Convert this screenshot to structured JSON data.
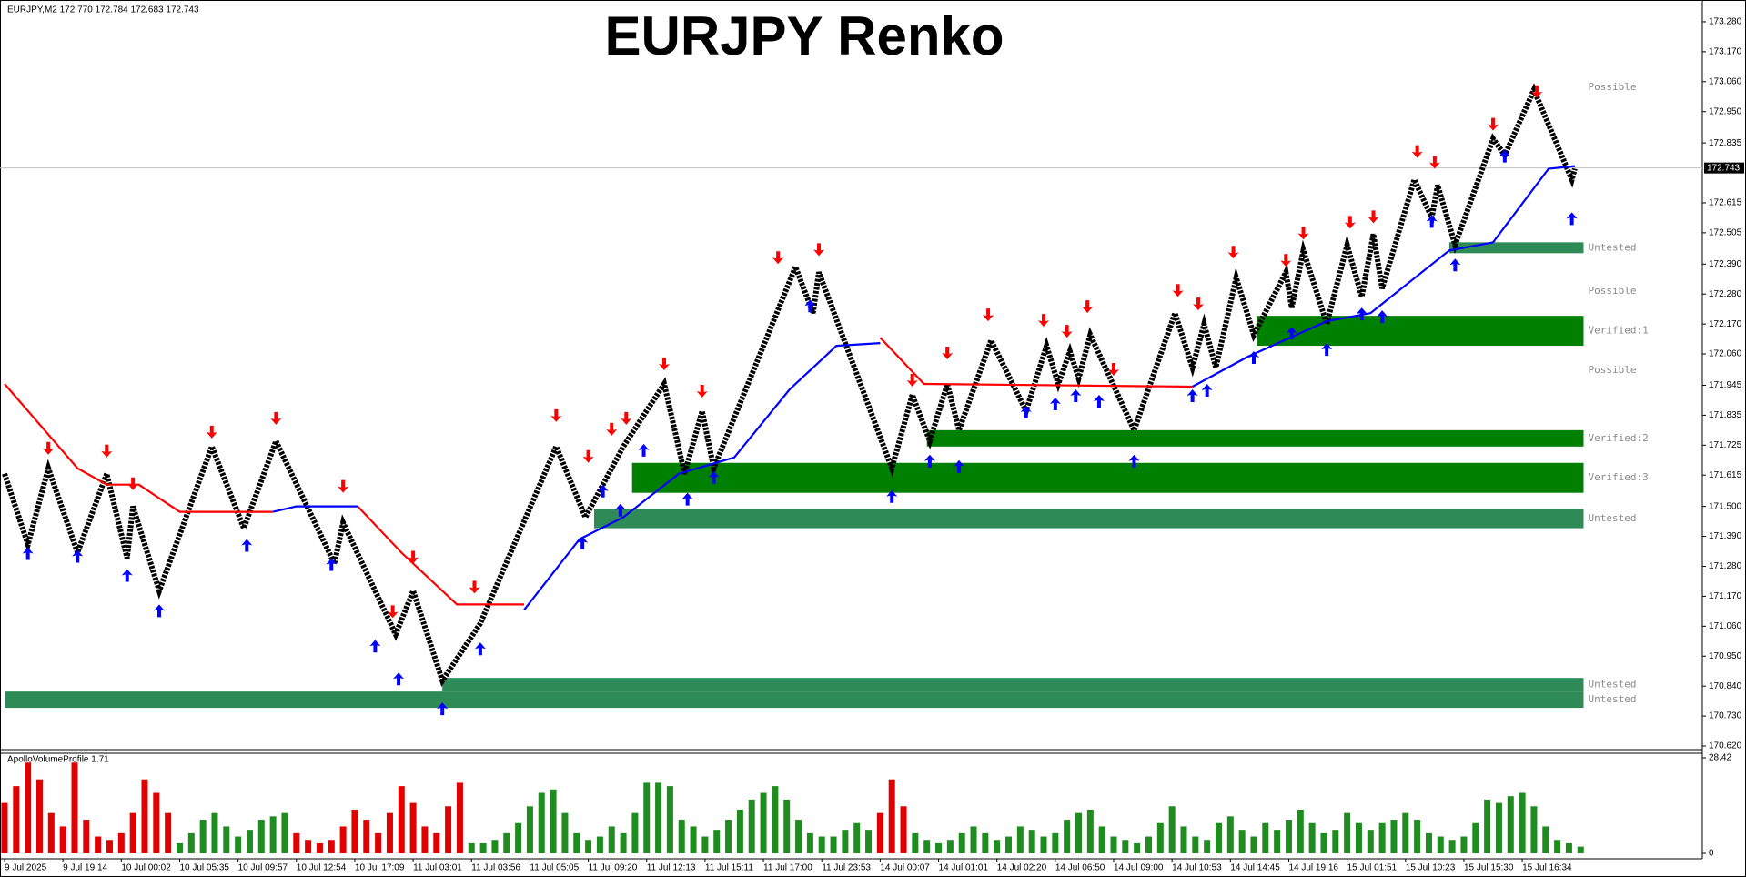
{
  "header": "EURJPY,M2  172.770 172.784 172.683 172.743",
  "chart_data": {
    "type": "renko",
    "title": "EURJPY Renko",
    "xlim": [
      0,
      582
    ],
    "xticks": [
      {
        "value": 0,
        "label": "9 Jul 2025"
      },
      {
        "value": 20,
        "label": "9 Jul 19:14"
      },
      {
        "value": 40,
        "label": "10 Jul 00:02"
      },
      {
        "value": 60,
        "label": "10 Jul 05:35"
      },
      {
        "value": 80,
        "label": "10 Jul 09:57"
      },
      {
        "value": 100,
        "label": "10 Jul 12:54"
      },
      {
        "value": 120,
        "label": "10 Jul 17:09"
      },
      {
        "value": 140,
        "label": "11 Jul 03:01"
      },
      {
        "value": 160,
        "label": "11 Jul 03:56"
      },
      {
        "value": 180,
        "label": "11 Jul 05:05"
      },
      {
        "value": 200,
        "label": "11 Jul 09:20"
      },
      {
        "value": 220,
        "label": "11 Jul 12:13"
      },
      {
        "value": 240,
        "label": "11 Jul 15:11"
      },
      {
        "value": 260,
        "label": "11 Jul 17:00"
      },
      {
        "value": 280,
        "label": "11 Jul 23:53"
      },
      {
        "value": 300,
        "label": "14 Jul 00:07"
      },
      {
        "value": 320,
        "label": "14 Jul 01:01"
      },
      {
        "value": 340,
        "label": "14 Jul 02:20"
      },
      {
        "value": 360,
        "label": "14 Jul 06:50"
      },
      {
        "value": 380,
        "label": "14 Jul 09:00"
      },
      {
        "value": 400,
        "label": "14 Jul 10:53"
      },
      {
        "value": 420,
        "label": "14 Jul 14:45"
      },
      {
        "value": 440,
        "label": "14 Jul 19:16"
      },
      {
        "value": 460,
        "label": "15 Jul 01:51"
      },
      {
        "value": 480,
        "label": "15 Jul 10:23"
      },
      {
        "value": 500,
        "label": "15 Jul 15:30"
      },
      {
        "value": 520,
        "label": "15 Jul 16:34"
      }
    ],
    "ylim": [
      170.61,
      173.36
    ],
    "yticks": [
      {
        "value": 173.28,
        "label": "173.280"
      },
      {
        "value": 173.17,
        "label": "173.170"
      },
      {
        "value": 173.06,
        "label": "173.060"
      },
      {
        "value": 172.95,
        "label": "172.950"
      },
      172.835,
      172.615,
      172.505,
      {
        "value": 172.39,
        "label": "172.390"
      },
      {
        "value": 172.28,
        "label": "172.280"
      },
      {
        "value": 172.17,
        "label": "172.170"
      },
      {
        "value": 172.06,
        "label": "172.060"
      },
      171.945,
      171.835,
      171.725,
      171.615,
      {
        "value": 171.5,
        "label": "171.500"
      },
      {
        "value": 171.39,
        "label": "171.390"
      },
      {
        "value": 171.28,
        "label": "171.280"
      },
      {
        "value": 171.17,
        "label": "171.170"
      },
      {
        "value": 171.06,
        "label": "171.060"
      },
      {
        "value": 170.95,
        "label": "170.950"
      },
      {
        "value": 170.84,
        "label": "170.840"
      },
      {
        "value": 170.73,
        "label": "170.730"
      },
      {
        "value": 170.62,
        "label": "170.620"
      }
    ],
    "current_price": {
      "value": 172.743,
      "label": "172.743"
    },
    "price": {
      "color": "#000000",
      "x": [
        0,
        8,
        15,
        25,
        35,
        42,
        44,
        53,
        71,
        82,
        93,
        113,
        116,
        134,
        140,
        150,
        163,
        189,
        199,
        212,
        226,
        233,
        239,
        243,
        271,
        277,
        279,
        304,
        311,
        317,
        323,
        327,
        338,
        350,
        357,
        361,
        365,
        368,
        372,
        387,
        401,
        407,
        411,
        415,
        422,
        428,
        439,
        441,
        445,
        453,
        460,
        465,
        469,
        472,
        483,
        489,
        491,
        497,
        510,
        514,
        524,
        537,
        538
      ],
      "values": [
        171.62,
        171.36,
        171.64,
        171.33,
        171.62,
        171.31,
        171.5,
        171.19,
        171.72,
        171.42,
        171.74,
        171.29,
        171.44,
        171.03,
        171.19,
        170.86,
        171.07,
        171.72,
        171.46,
        171.72,
        171.95,
        171.62,
        171.85,
        171.64,
        172.38,
        172.21,
        172.36,
        171.64,
        171.91,
        171.74,
        171.95,
        171.78,
        172.11,
        171.85,
        172.09,
        171.95,
        172.07,
        171.97,
        172.13,
        171.78,
        172.21,
        172.01,
        172.17,
        172.01,
        172.34,
        172.13,
        172.36,
        172.23,
        172.44,
        172.17,
        172.46,
        172.27,
        172.5,
        172.3,
        172.7,
        172.56,
        172.68,
        172.46,
        172.85,
        172.79,
        173.03,
        172.7,
        172.74
      ]
    },
    "trend": [
      {
        "color": "#ff0000",
        "x": [
          0,
          25,
          35,
          46,
          60,
          92,
          106,
          121,
          136,
          155,
          178,
          240,
          300,
          315,
          407
        ],
        "values": [
          171.95,
          171.64,
          171.58,
          171.58,
          171.48,
          171.48,
          null,
          171.5,
          171.33,
          171.14,
          171.14,
          null,
          172.12,
          171.95,
          171.94
        ]
      },
      {
        "color": "#0000ff",
        "x": [
          92,
          100,
          121,
          150,
          178,
          197,
          212,
          231,
          250,
          269,
          285,
          300,
          350,
          407,
          426,
          453,
          468,
          495,
          510,
          529,
          538
        ],
        "values": [
          171.48,
          171.5,
          171.5,
          null,
          171.12,
          171.38,
          171.46,
          171.62,
          171.68,
          171.93,
          172.09,
          172.1,
          null,
          171.94,
          172.05,
          172.18,
          172.21,
          172.44,
          172.47,
          172.74,
          172.75
        ]
      }
    ],
    "signals": [
      {
        "direction": "up",
        "color": "#0000ff",
        "x": [
          8,
          25,
          42,
          53,
          83,
          112,
          127,
          135,
          150,
          163,
          198,
          205,
          211,
          219,
          234,
          243,
          276,
          304,
          317,
          327,
          350,
          360,
          367,
          375,
          387,
          407,
          412,
          428,
          441,
          453,
          465,
          472,
          489,
          497,
          514,
          537
        ],
        "values": [
          171.35,
          171.34,
          171.27,
          171.14,
          171.38,
          171.31,
          171.01,
          170.89,
          170.78,
          171.0,
          171.39,
          171.58,
          171.51,
          171.73,
          171.55,
          171.63,
          172.26,
          171.56,
          171.69,
          171.67,
          171.87,
          171.9,
          171.93,
          171.91,
          171.69,
          171.93,
          171.95,
          172.07,
          172.16,
          172.1,
          172.23,
          172.22,
          172.57,
          172.41,
          172.81,
          172.58
        ]
      },
      {
        "direction": "down",
        "color": "#ff0000",
        "x": [
          15,
          35,
          44,
          71,
          93,
          116,
          133,
          140,
          161,
          189,
          200,
          208,
          213,
          226,
          239,
          265,
          279,
          311,
          323,
          337,
          356,
          364,
          371,
          380,
          402,
          409,
          421,
          439,
          445,
          461,
          469,
          484,
          490,
          510,
          525
        ],
        "values": [
          171.69,
          171.68,
          171.56,
          171.75,
          171.8,
          171.55,
          171.09,
          171.29,
          171.18,
          171.81,
          171.66,
          171.76,
          171.8,
          172.0,
          171.9,
          172.39,
          172.42,
          171.94,
          172.04,
          172.18,
          172.16,
          172.12,
          172.21,
          171.98,
          172.27,
          172.22,
          172.41,
          172.38,
          172.48,
          172.52,
          172.54,
          172.78,
          172.74,
          172.88,
          173.0
        ]
      }
    ],
    "zones": [
      {
        "label": "Untested",
        "color": "#2e8b57",
        "x": [
          495,
          541
        ],
        "values": [
          172.43,
          172.47
        ]
      },
      {
        "label": "Verified:1",
        "color": "#008000",
        "x": [
          429,
          541
        ],
        "values": [
          172.09,
          172.2
        ]
      },
      {
        "label": "Verified:2",
        "color": "#008000",
        "x": [
          316,
          541
        ],
        "values": [
          171.72,
          171.78
        ]
      },
      {
        "label": "Verified:3",
        "color": "#008000",
        "x": [
          215,
          541
        ],
        "values": [
          171.55,
          171.66
        ]
      },
      {
        "label": "Untested",
        "color": "#2e8b57",
        "x": [
          202,
          541
        ],
        "values": [
          171.42,
          171.49
        ]
      },
      {
        "label": "Untested",
        "color": "#2e8b57",
        "x": [
          150,
          541
        ],
        "values": [
          170.82,
          170.87
        ]
      },
      {
        "label": "Untested",
        "color": "#2e8b57",
        "x": [
          0,
          541
        ],
        "values": [
          170.76,
          170.82
        ]
      }
    ],
    "levels": [
      {
        "label": "Possible",
        "value": 173.04
      },
      {
        "label": "Possible",
        "value": 172.29
      },
      {
        "label": "Possible",
        "value": 172.0
      }
    ],
    "volume": {
      "title": "ApolloVolumeProfile 1.71",
      "ylim": [
        0,
        28.42
      ],
      "yticks": [
        28.42,
        0
      ],
      "bars": [
        {
          "color": "#e00000",
          "x": [
            0,
            4,
            8,
            12,
            16,
            20,
            24,
            28,
            32,
            36,
            40,
            44,
            48,
            52,
            56
          ],
          "values": [
            15,
            20,
            27,
            22,
            12,
            8,
            27,
            10,
            5,
            4,
            6,
            12,
            22,
            18,
            12
          ]
        },
        {
          "color": "#1e8c1e",
          "x": [
            60,
            64,
            68,
            72,
            76,
            80,
            84,
            88,
            92,
            96
          ],
          "values": [
            3,
            6,
            10,
            12,
            8,
            5,
            7,
            10,
            11,
            12
          ]
        },
        {
          "color": "#e00000",
          "x": [
            100,
            104,
            108,
            112,
            116,
            120,
            124,
            128,
            132,
            136,
            140,
            144,
            148,
            152,
            156
          ],
          "values": [
            6,
            4,
            3,
            4,
            8,
            13,
            10,
            6,
            12,
            20,
            15,
            8,
            6,
            14,
            21
          ]
        },
        {
          "color": "#1e8c1e",
          "x": [
            160,
            164,
            168,
            172,
            176,
            180,
            184,
            188,
            192,
            196,
            200,
            204,
            208,
            212,
            216,
            220,
            224,
            228,
            232,
            236,
            240,
            244,
            248,
            252,
            256,
            260,
            264,
            268,
            272,
            276,
            280,
            284,
            288,
            292,
            296
          ],
          "values": [
            3,
            3,
            4,
            6,
            9,
            14,
            18,
            19,
            12,
            6,
            4,
            5,
            8,
            6,
            12,
            21,
            21,
            20,
            10,
            8,
            5,
            7,
            10,
            13,
            16,
            18,
            20,
            16,
            10,
            6,
            5,
            5,
            7,
            9,
            7
          ]
        },
        {
          "color": "#e00000",
          "x": [
            300,
            304,
            308
          ],
          "values": [
            12,
            22,
            14
          ]
        },
        {
          "color": "#1e8c1e",
          "x": [
            312,
            316,
            320,
            324,
            328,
            332,
            336,
            340,
            344,
            348,
            352,
            356,
            360,
            364,
            368,
            372,
            376,
            380,
            384,
            388,
            392,
            396,
            400,
            404,
            408,
            412,
            416,
            420,
            424,
            428,
            432,
            436,
            440,
            444,
            448,
            452,
            456,
            460,
            464,
            468,
            472,
            476,
            480,
            484,
            488,
            492,
            496,
            500,
            504,
            508,
            512,
            516,
            520,
            524,
            528,
            532,
            536,
            540
          ],
          "values": [
            6,
            4,
            3,
            4,
            6,
            8,
            6,
            4,
            5,
            8,
            7,
            5,
            6,
            10,
            12,
            13,
            8,
            5,
            4,
            3,
            5,
            9,
            14,
            8,
            5,
            4,
            9,
            11,
            7,
            5,
            9,
            7,
            10,
            13,
            9,
            6,
            7,
            12,
            9,
            7,
            9,
            10,
            12,
            10,
            6,
            5,
            4,
            5,
            9,
            16,
            15,
            17,
            18,
            14,
            8,
            4,
            3,
            2
          ]
        }
      ]
    }
  }
}
